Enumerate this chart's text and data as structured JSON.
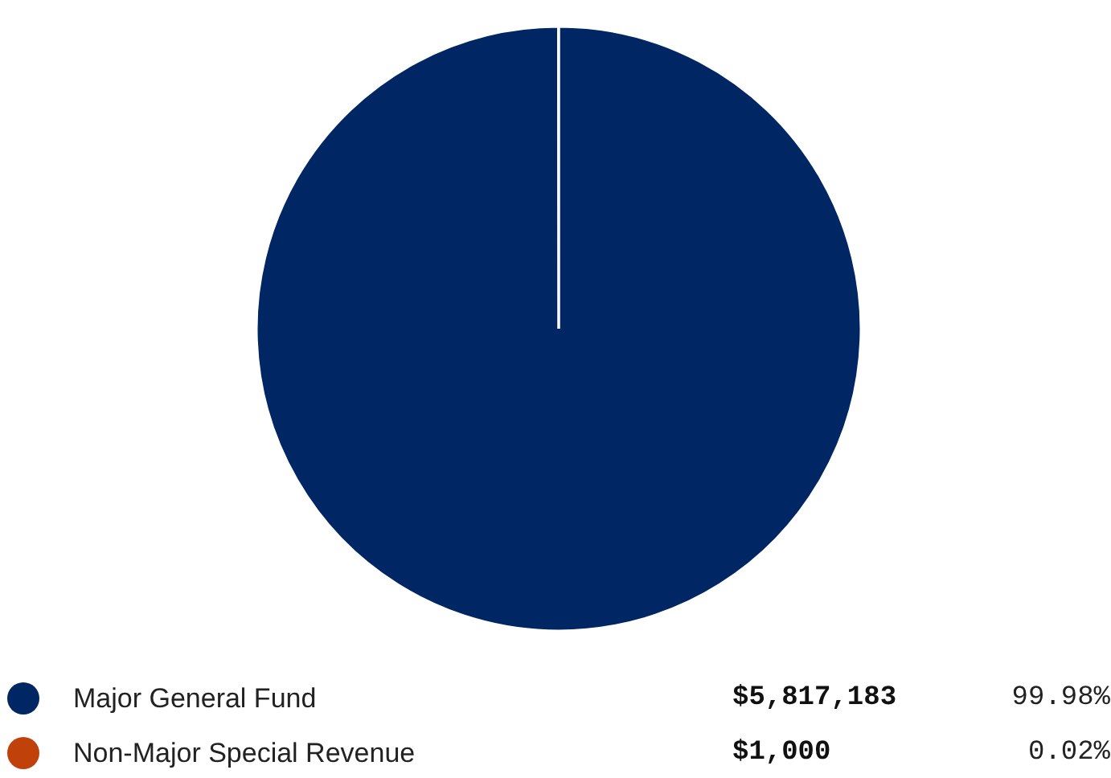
{
  "chart_data": {
    "type": "pie",
    "categories": [
      "Major General Fund",
      "Non-Major Special Revenue"
    ],
    "values": [
      5817183,
      1000
    ],
    "colors": [
      "#002664",
      "#c0410a"
    ],
    "value_labels": [
      "$5,817,183",
      "$1,000"
    ],
    "annotations": [
      "99.98%",
      "0.02%"
    ],
    "legend": "bottom"
  }
}
